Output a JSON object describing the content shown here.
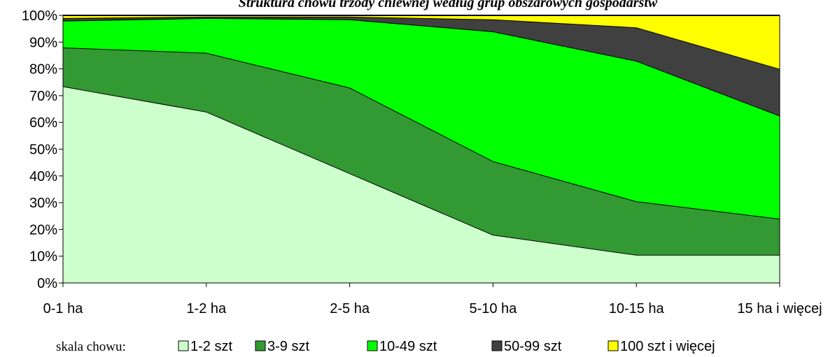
{
  "chart_data": {
    "type": "area",
    "stacked": true,
    "percent": true,
    "title": "Struktura chowu trzody chlewnej według grup obszarowych gospodarstw",
    "categories": [
      "0-1 ha",
      "1-2 ha",
      "2-5 ha",
      "5-10 ha",
      "10-15 ha",
      "15 ha i więcej"
    ],
    "ylim": [
      0,
      100
    ],
    "yticks": [
      "0%",
      "10%",
      "20%",
      "30%",
      "40%",
      "50%",
      "60%",
      "70%",
      "80%",
      "90%",
      "100%"
    ],
    "legend_caption": "skala chowu:",
    "legend_position": "bottom",
    "series": [
      {
        "name": "1-2 szt",
        "color": "#ccffcc",
        "values": [
          73.5,
          64,
          41,
          18,
          10.5,
          10.5
        ]
      },
      {
        "name": "3-9 szt",
        "color": "#339933",
        "values": [
          14.5,
          22,
          32,
          27.5,
          20,
          13.5
        ]
      },
      {
        "name": "10-49 szt",
        "color": "#00ff00",
        "values": [
          10,
          13,
          25.5,
          48.5,
          52.5,
          38.5
        ]
      },
      {
        "name": "50-99 szt",
        "color": "#404040",
        "values": [
          1,
          0.5,
          1,
          4.5,
          12.5,
          17.5
        ]
      },
      {
        "name": "100 szt i więcej",
        "color": "#ffff00",
        "values": [
          1,
          0.5,
          0.5,
          1.5,
          4.5,
          20
        ]
      }
    ]
  }
}
